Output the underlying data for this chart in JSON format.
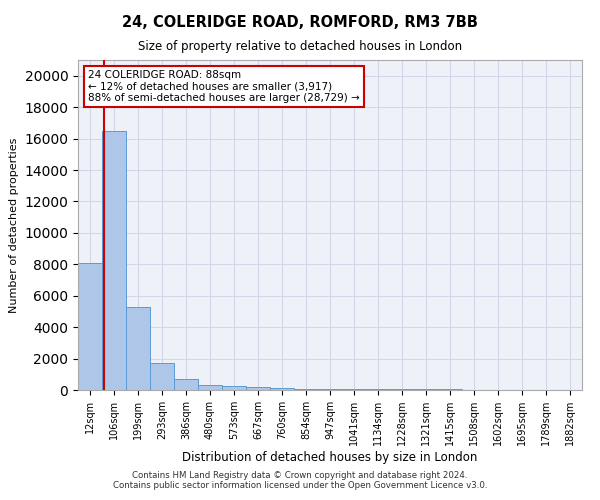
{
  "title": "24, COLERIDGE ROAD, ROMFORD, RM3 7BB",
  "subtitle": "Size of property relative to detached houses in London",
  "xlabel": "Distribution of detached houses by size in London",
  "ylabel": "Number of detached properties",
  "bar_color": "#aec6e8",
  "bar_edge_color": "#5b9bd5",
  "categories": [
    "12sqm",
    "106sqm",
    "199sqm",
    "293sqm",
    "386sqm",
    "480sqm",
    "573sqm",
    "667sqm",
    "760sqm",
    "854sqm",
    "947sqm",
    "1041sqm",
    "1134sqm",
    "1228sqm",
    "1321sqm",
    "1415sqm",
    "1508sqm",
    "1602sqm",
    "1695sqm",
    "1789sqm",
    "1882sqm"
  ],
  "values": [
    8100,
    16500,
    5300,
    1750,
    700,
    350,
    250,
    160,
    110,
    90,
    80,
    70,
    60,
    50,
    40,
    35,
    30,
    25,
    20,
    15,
    10
  ],
  "ylim": [
    0,
    21000
  ],
  "yticks": [
    0,
    2000,
    4000,
    6000,
    8000,
    10000,
    12000,
    14000,
    16000,
    18000,
    20000
  ],
  "vline_x": 0.575,
  "annotation_text": "24 COLERIDGE ROAD: 88sqm\n← 12% of detached houses are smaller (3,917)\n88% of semi-detached houses are larger (28,729) →",
  "annotation_box_color": "#cc0000",
  "footer_line1": "Contains HM Land Registry data © Crown copyright and database right 2024.",
  "footer_line2": "Contains public sector information licensed under the Open Government Licence v3.0.",
  "background_color": "#eef2f8",
  "grid_color": "#d0d8e8"
}
